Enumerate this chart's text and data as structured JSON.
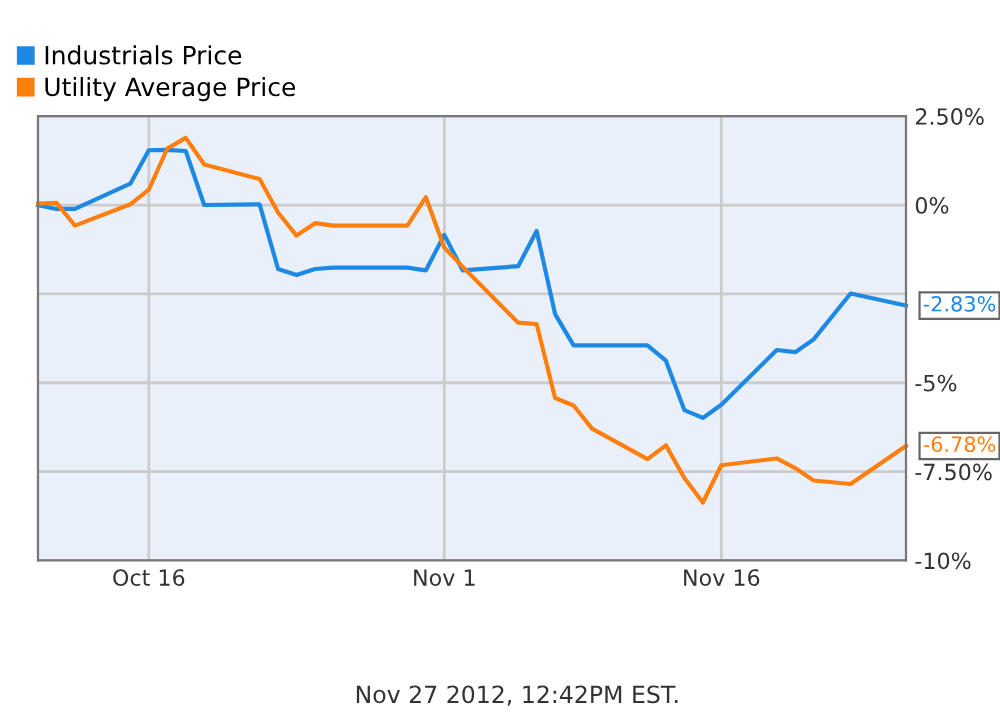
{
  "chart_data": {
    "type": "line",
    "legend": "top left",
    "grid": true,
    "marker": "none",
    "line_style": "solid",
    "xlim": [
      "2012-10-10",
      "2012-11-26"
    ],
    "series": [
      {
        "name": "Industrials Price",
        "color": "#1e88e5",
        "x": [
          "2012-10-10",
          "2012-10-11",
          "2012-10-12",
          "2012-10-15",
          "2012-10-16",
          "2012-10-17",
          "2012-10-18",
          "2012-10-19",
          "2012-10-22",
          "2012-10-23",
          "2012-10-24",
          "2012-10-25",
          "2012-10-26",
          "2012-10-30",
          "2012-10-31",
          "2012-11-01",
          "2012-11-02",
          "2012-11-05",
          "2012-11-06",
          "2012-11-07",
          "2012-11-08",
          "2012-11-12",
          "2012-11-13",
          "2012-11-14",
          "2012-11-15",
          "2012-11-16",
          "2012-11-19",
          "2012-11-20",
          "2012-11-21",
          "2012-11-23",
          "2012-11-26"
        ],
        "values": [
          0,
          -0.11,
          -0.11,
          0.6,
          1.54,
          1.55,
          1.52,
          0,
          0.02,
          -1.8,
          -1.97,
          -1.8,
          -1.76,
          -1.76,
          -1.84,
          -0.84,
          -1.84,
          -1.72,
          -0.73,
          -3.07,
          -3.95,
          -3.95,
          -4.38,
          -5.77,
          -5.99,
          -5.62,
          -4.08,
          -4.14,
          -3.78,
          -2.49,
          -2.83
        ],
        "value_labels": [
          null,
          null,
          null,
          null,
          null,
          null,
          null,
          null,
          null,
          null,
          null,
          null,
          null,
          null,
          null,
          null,
          null,
          null,
          null,
          null,
          null,
          null,
          null,
          null,
          null,
          null,
          null,
          null,
          null,
          null,
          "-2.83%"
        ]
      },
      {
        "name": "Utility Average Price",
        "color": "#ff7f0e",
        "x": [
          "2012-10-10",
          "2012-10-11",
          "2012-10-12",
          "2012-10-15",
          "2012-10-16",
          "2012-10-17",
          "2012-10-18",
          "2012-10-19",
          "2012-10-22",
          "2012-10-23",
          "2012-10-24",
          "2012-10-25",
          "2012-10-26",
          "2012-10-30",
          "2012-10-31",
          "2012-11-01",
          "2012-11-02",
          "2012-11-05",
          "2012-11-06",
          "2012-11-07",
          "2012-11-08",
          "2012-11-09",
          "2012-11-12",
          "2012-11-13",
          "2012-11-14",
          "2012-11-15",
          "2012-11-16",
          "2012-11-19",
          "2012-11-20",
          "2012-11-21",
          "2012-11-23",
          "2012-11-26"
        ],
        "values": [
          0.04,
          0.06,
          -0.58,
          0.02,
          0.43,
          1.59,
          1.89,
          1.14,
          0.73,
          -0.21,
          -0.86,
          -0.51,
          -0.58,
          -0.58,
          0.22,
          -1.2,
          -1.74,
          -3.31,
          -3.35,
          -5.43,
          -5.64,
          -6.29,
          -7.15,
          -6.76,
          -7.68,
          -8.37,
          -7.32,
          -7.13,
          -7.4,
          -7.75,
          -7.85,
          -6.78
        ],
        "value_labels": [
          null,
          null,
          null,
          null,
          null,
          null,
          null,
          null,
          null,
          null,
          null,
          null,
          null,
          null,
          null,
          null,
          null,
          null,
          null,
          null,
          null,
          null,
          null,
          null,
          null,
          null,
          null,
          null,
          null,
          null,
          null,
          "-6.78%"
        ]
      }
    ],
    "ylim": [
      -10,
      2.5
    ],
    "yticks": [
      {
        "value": 2.5,
        "label": "2.50%"
      },
      {
        "value": 0,
        "label": "0%"
      },
      {
        "value": -2.5,
        "label": null
      },
      {
        "value": -5,
        "label": "-5%"
      },
      {
        "value": -7.5,
        "label": "-7.50%"
      },
      {
        "value": -10,
        "label": "-10%"
      }
    ],
    "xticks": [
      {
        "value": "2012-10-16",
        "label": "Oct 16"
      },
      {
        "value": "2012-11-01",
        "label": "Nov 1"
      },
      {
        "value": "2012-11-16",
        "label": "Nov 16"
      }
    ],
    "annotations": [
      "Nov 27 2012, 12:42PM EST."
    ]
  }
}
